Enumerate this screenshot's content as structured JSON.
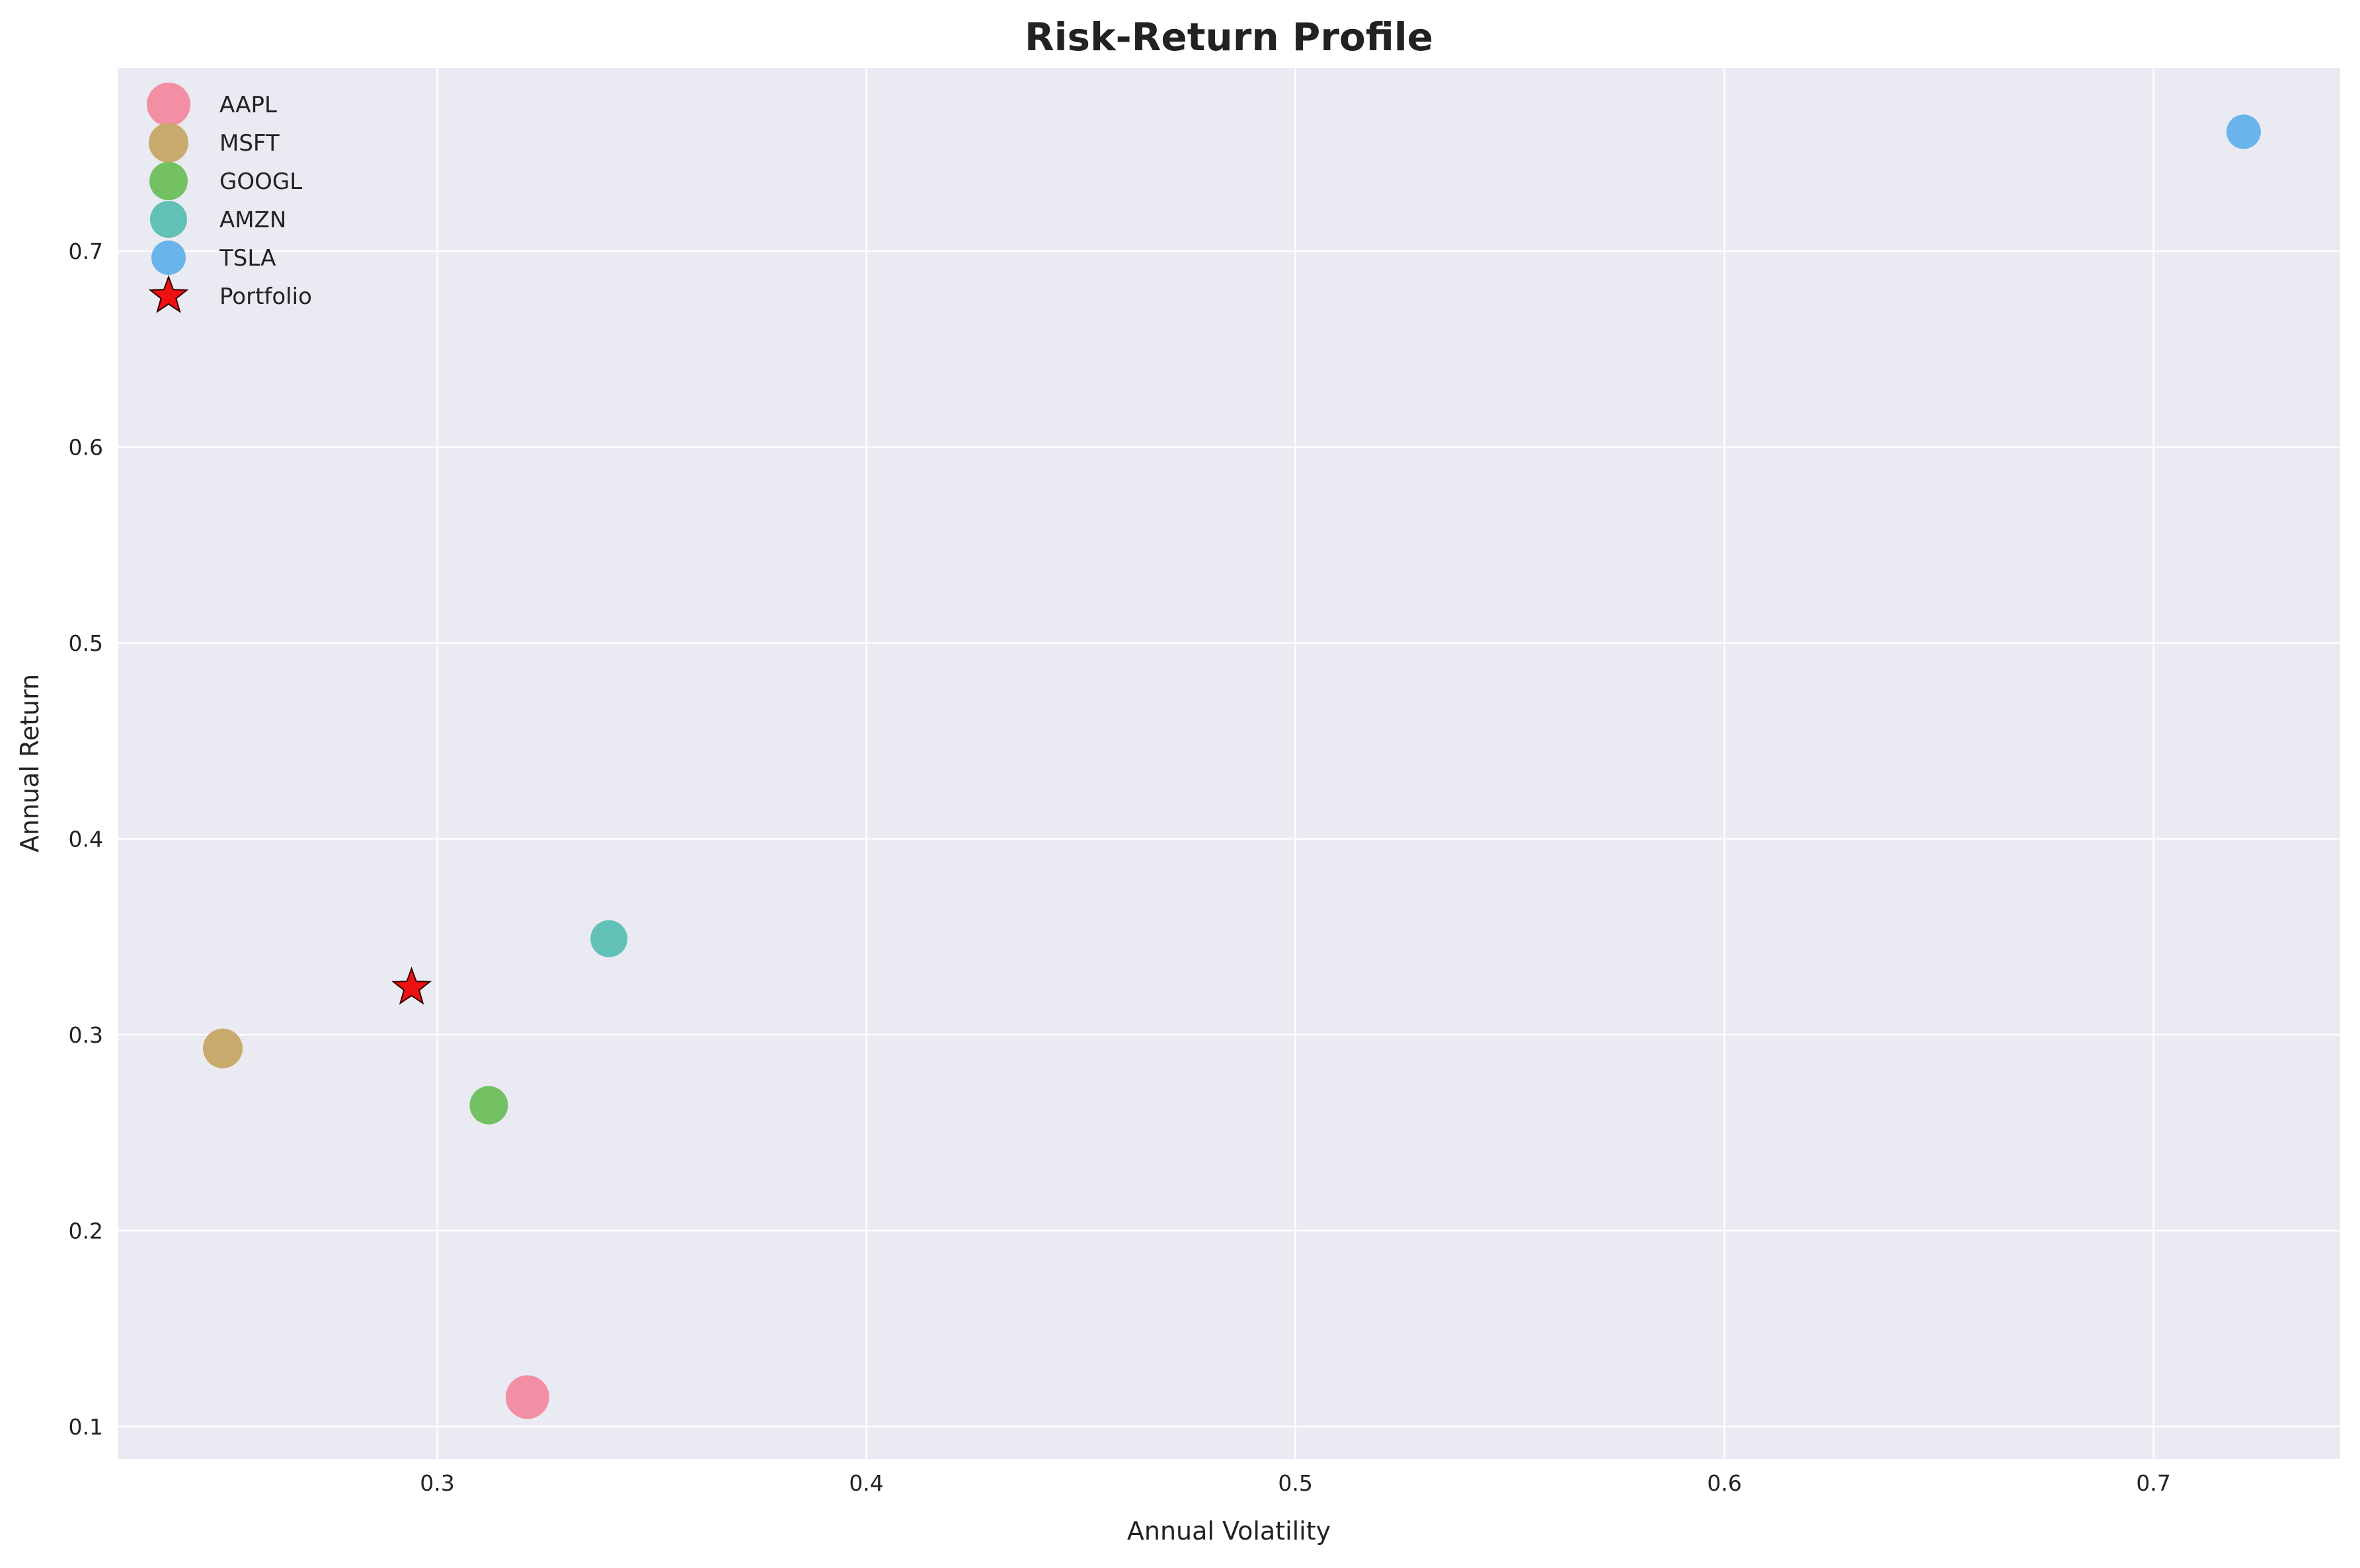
{
  "chart_data": {
    "type": "scatter",
    "title": "Risk-Return Profile",
    "xlabel": "Annual Volatility",
    "ylabel": "Annual Return",
    "xlim": [
      0.2255,
      0.7435
    ],
    "ylim": [
      0.0834,
      0.7935
    ],
    "xticks": [
      0.3,
      0.4,
      0.5,
      0.6,
      0.7
    ],
    "yticks": [
      0.1,
      0.2,
      0.3,
      0.4,
      0.5,
      0.6,
      0.7
    ],
    "grid": true,
    "legend_position": "top-left",
    "series": [
      {
        "name": "AAPL",
        "marker": "circle",
        "color": "#f28aa0",
        "x": 0.321,
        "y": 0.115
      },
      {
        "name": "MSFT",
        "marker": "circle",
        "color": "#c6a864",
        "x": 0.25,
        "y": 0.293
      },
      {
        "name": "GOOGL",
        "marker": "circle",
        "color": "#6dbf5a",
        "x": 0.312,
        "y": 0.264
      },
      {
        "name": "AMZN",
        "marker": "circle",
        "color": "#5bbfb3",
        "x": 0.34,
        "y": 0.349
      },
      {
        "name": "TSLA",
        "marker": "circle",
        "color": "#62b2ea",
        "x": 0.721,
        "y": 0.761
      },
      {
        "name": "Portfolio",
        "marker": "star",
        "color": "#ee1111",
        "x": 0.294,
        "y": 0.324
      }
    ]
  }
}
